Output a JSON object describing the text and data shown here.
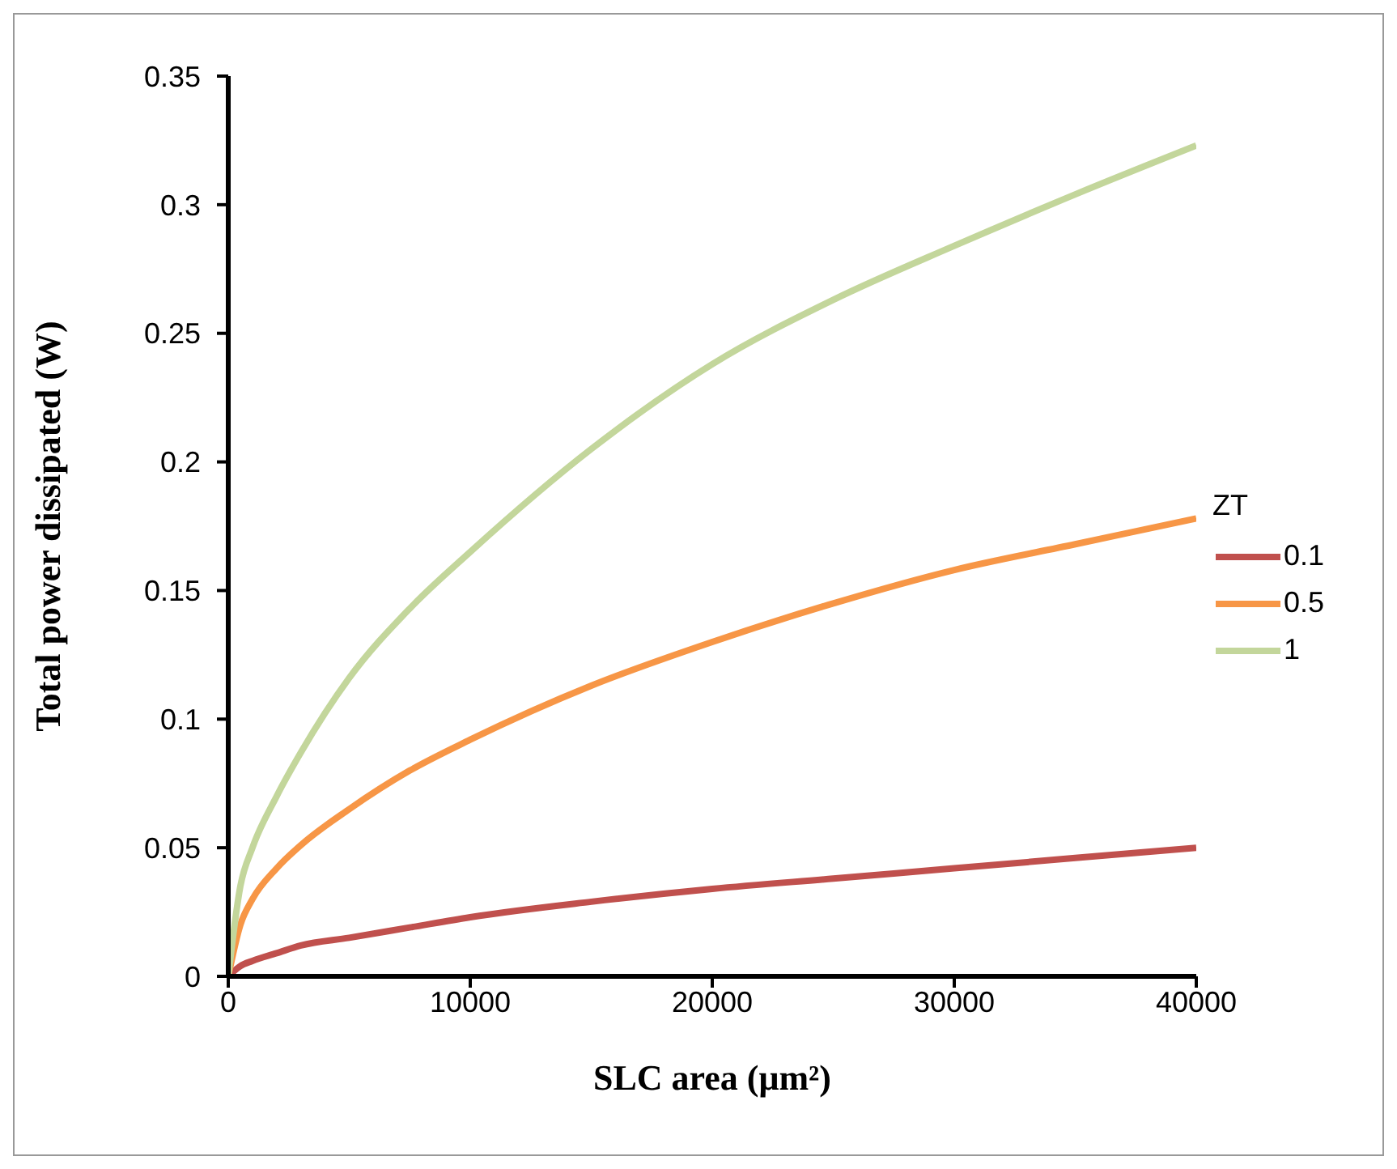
{
  "chart_data": {
    "type": "line",
    "xlabel": "SLC area (μm²)",
    "ylabel": "Total power dissipated (W)",
    "legend_title": "ZT",
    "legend": "right",
    "grid": false,
    "marker": "none",
    "line_style": "solid",
    "x": [
      0,
      500,
      1000,
      2000,
      3000,
      5000,
      7500,
      10000,
      15000,
      20000,
      25000,
      30000,
      35000,
      40000
    ],
    "series": [
      {
        "name": "0.1",
        "color": "#c0504d",
        "values": [
          0,
          0.004,
          0.006,
          0.009,
          0.012,
          0.015,
          0.019,
          0.023,
          0.029,
          0.034,
          0.038,
          0.042,
          0.046,
          0.05
        ]
      },
      {
        "name": "0.5",
        "color": "#f79646",
        "values": [
          0,
          0.02,
          0.03,
          0.042,
          0.051,
          0.065,
          0.08,
          0.092,
          0.113,
          0.13,
          0.145,
          0.158,
          0.168,
          0.178
        ]
      },
      {
        "name": "1",
        "color": "#c3d69b",
        "values": [
          0,
          0.035,
          0.05,
          0.07,
          0.087,
          0.116,
          0.143,
          0.165,
          0.205,
          0.238,
          0.263,
          0.284,
          0.304,
          0.323
        ]
      }
    ],
    "xlim": [
      0,
      40000
    ],
    "xticks": [
      0,
      10000,
      20000,
      30000,
      40000
    ],
    "ylim": [
      0,
      0.35
    ],
    "yticks": [
      0,
      0.05,
      0.1,
      0.15,
      0.2,
      0.25,
      0.3,
      0.35
    ]
  }
}
